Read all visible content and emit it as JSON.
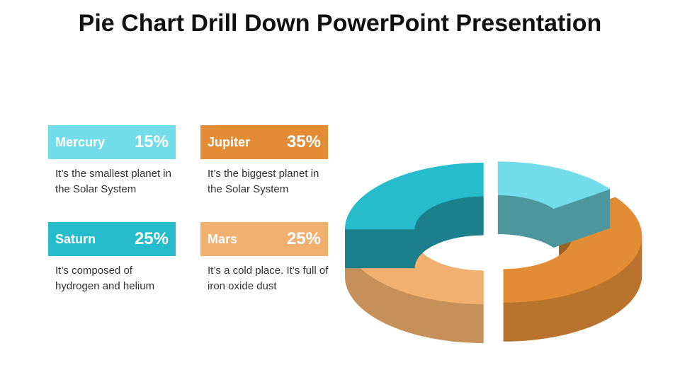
{
  "title": "Pie Chart Drill Down PowerPoint Presentation",
  "cards": [
    {
      "name": "Mercury",
      "percent": "15%",
      "desc": "It’s the smallest planet in the Solar System",
      "color": "#72DDE8"
    },
    {
      "name": "Jupiter",
      "percent": "35%",
      "desc": "It’s the biggest planet in the Solar System",
      "color": "#E38C36"
    },
    {
      "name": "Saturn",
      "percent": "25%",
      "desc": "It’s composed of hydrogen and helium",
      "color": "#27BCCC"
    },
    {
      "name": "Mars",
      "percent": "25%",
      "desc": "It’s a cold place. It’s full of iron oxide dust",
      "color": "#F2B06E"
    }
  ],
  "chart_data": {
    "type": "pie",
    "style": "3d-exploded-donut",
    "categories": [
      "Mercury",
      "Jupiter",
      "Mars",
      "Saturn"
    ],
    "values": [
      15,
      35,
      25,
      25
    ],
    "colors": [
      "#72DDE8",
      "#E38C36",
      "#F2B06E",
      "#27BCCC"
    ],
    "title": "",
    "legend": "left"
  }
}
